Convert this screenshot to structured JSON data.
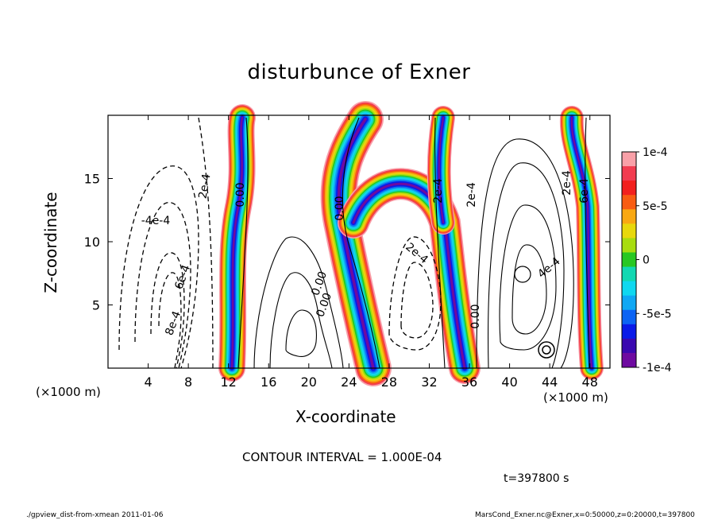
{
  "chart_data": {
    "type": "heatmap",
    "title": "disturbunce of Exner",
    "xlabel": "X-coordinate",
    "ylabel": "Z-coordinate",
    "x_unit": "(×1000 m)",
    "x_ticks": [
      4,
      8,
      12,
      16,
      20,
      24,
      28,
      32,
      36,
      40,
      44,
      48
    ],
    "y_ticks": [
      5,
      10,
      15
    ],
    "xlim": [
      0,
      50
    ],
    "ylim": [
      0,
      20
    ],
    "colorbar": {
      "range": [
        -0.0001,
        0.0001
      ],
      "tick_labels": [
        "1e-4",
        "5e-5",
        "0",
        "-5e-5",
        "-1e-4"
      ],
      "tick_values": [
        0.0001,
        5e-05,
        0,
        -5e-05,
        -0.0001
      ],
      "colors": [
        "#f9a0a8",
        "#f23c50",
        "#f2201e",
        "#f85c12",
        "#f9a812",
        "#e8d80c",
        "#a8dd10",
        "#28c822",
        "#12d8b2",
        "#10d8f0",
        "#10a8f4",
        "#0c64f4",
        "#0a1ae8",
        "#3a08b0",
        "#6e0aa0"
      ]
    },
    "contour_labels": [
      "2e-4",
      "0.00",
      "-4e-4",
      "6e-4",
      "8e-4",
      "0.00",
      "2e-4",
      "0.00",
      "2e-4",
      "2e-4",
      "0.00",
      "4e-4",
      "6e-4",
      "0.00",
      "2e-4"
    ],
    "annotation": "CONTOUR INTERVAL = 1.000E-04",
    "time_label": "t=397800 s"
  },
  "footer": {
    "left": "./gpview_dist-from-xmean  2011-01-06",
    "right": "MarsCond_Exner.nc@Exner,x=0:50000,z=0:20000,t=397800"
  }
}
